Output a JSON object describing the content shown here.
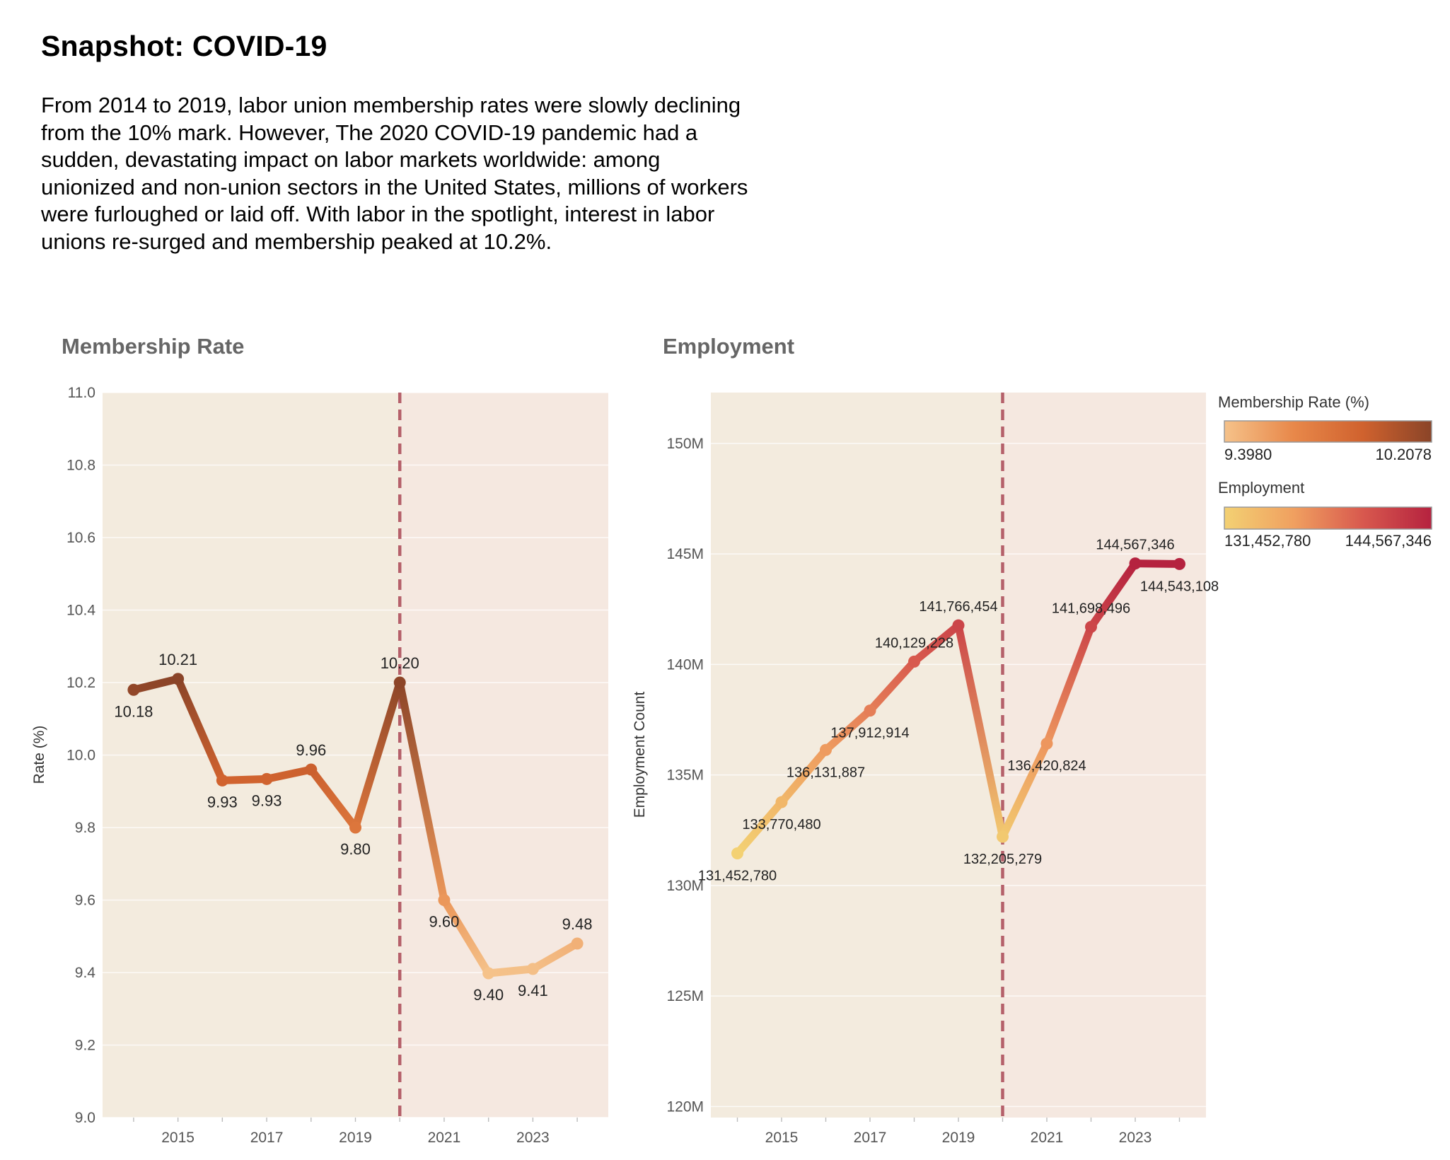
{
  "page": {
    "title": "Snapshot: COVID-19",
    "description": "From 2014 to 2019, labor union membership rates were slowly declining from the 10% mark. However, The 2020 COVID-19 pandemic had a sudden, devastating impact on labor markets worldwide: among unionized and non-union sectors in the United States, millions of workers were furloughed or laid off. With labor in the spotlight, interest in labor unions re-surged and membership peaked at 10.2%."
  },
  "colors": {
    "pre_covid_background": "#f3ebde",
    "post_covid_background": "#f5e8e0",
    "covid_marker_line": "#b5606a",
    "membership_scale": [
      "#f5c28a",
      "#e8884a",
      "#d0622e",
      "#8a4428"
    ],
    "employment_scale": [
      "#f3d173",
      "#f0a060",
      "#d8594e",
      "#b5223f"
    ]
  },
  "chart_data": [
    {
      "type": "line",
      "title": "Membership Rate",
      "xlabel": "",
      "ylabel": "Rate (%)",
      "ylim": [
        9.0,
        11.0
      ],
      "yticks": [
        "9.0",
        "9.2",
        "9.4",
        "9.6",
        "9.8",
        "10.0",
        "10.2",
        "10.4",
        "10.6",
        "10.8",
        "11.0"
      ],
      "xlim": [
        2013.3,
        2024.7
      ],
      "xticks": [
        "2015",
        "2017",
        "2019",
        "2021",
        "2023"
      ],
      "covid_year": 2020,
      "x": [
        2014,
        2015,
        2016,
        2017,
        2018,
        2019,
        2020,
        2021,
        2022,
        2023,
        2024
      ],
      "values": [
        10.18,
        10.21,
        9.93,
        9.934,
        9.96,
        9.8,
        10.2,
        9.6,
        9.398,
        9.41,
        9.48
      ],
      "labels": [
        "10.18",
        "10.21",
        "9.93",
        "9.93",
        "9.96",
        "9.80",
        "10.20",
        "9.60",
        "9.40",
        "9.41",
        "9.48"
      ],
      "label_positions": [
        "below",
        "above",
        "below",
        "below",
        "above",
        "below",
        "above",
        "below",
        "below",
        "below",
        "above"
      ]
    },
    {
      "type": "line",
      "title": "Employment",
      "xlabel": "",
      "ylabel": "Employment Count",
      "ylim": [
        119500000,
        152300000
      ],
      "yticks": [
        "120M",
        "125M",
        "130M",
        "135M",
        "140M",
        "145M",
        "150M"
      ],
      "xlim": [
        2013.4,
        2024.6
      ],
      "xticks": [
        "2015",
        "2017",
        "2019",
        "2021",
        "2023"
      ],
      "covid_year": 2020,
      "x": [
        2014,
        2015,
        2016,
        2017,
        2018,
        2019,
        2020,
        2021,
        2022,
        2023,
        2024
      ],
      "values": [
        131452780,
        133770480,
        136131887,
        137912914,
        140129228,
        141766454,
        132205279,
        136420824,
        141698496,
        144567346,
        144543108
      ],
      "labels": [
        "131,452,780",
        "133,770,480",
        "136,131,887",
        "137,912,914",
        "140,129,228",
        "141,766,454",
        "132,205,279",
        "136,420,824",
        "141,698,496",
        "144,567,346",
        "144,543,108"
      ],
      "label_positions": [
        "below",
        "below",
        "below",
        "below",
        "above",
        "above",
        "below",
        "below",
        "above",
        "above",
        "below"
      ]
    }
  ],
  "legend": {
    "membership": {
      "title": "Membership Rate (%)",
      "min_label": "9.3980",
      "max_label": "10.2078"
    },
    "employment": {
      "title": "Employment",
      "min_label": "131,452,780",
      "max_label": "144,567,346"
    }
  }
}
